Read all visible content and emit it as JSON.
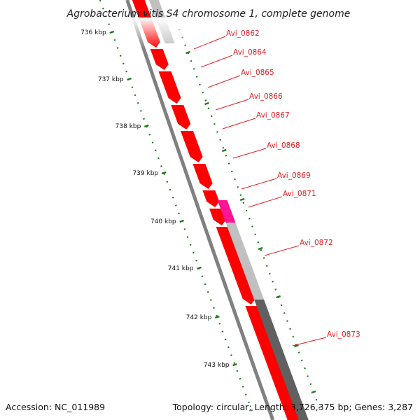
{
  "title": "Agrobacterium vitis S4 chromosome 1, complete genome",
  "footer": {
    "accession": "Accession: NC_011989",
    "summary": "Topology: circular; Length: 3,726,375 bp; Genes: 3,287"
  },
  "colors": {
    "forward_cds": "#ff0000",
    "highlight_cds": "#ff1493",
    "backbone": "#808080",
    "gene_label": "#e02020",
    "tick": "#1e7a1e",
    "light_feature": "#c0c0c0",
    "dark_feature": "#606060"
  },
  "scale_ticks": [
    {
      "label": "736 kbp"
    },
    {
      "label": "737 kbp"
    },
    {
      "label": "738 kbp"
    },
    {
      "label": "739 kbp"
    },
    {
      "label": "740 kbp"
    },
    {
      "label": "741 kbp"
    },
    {
      "label": "742 kbp"
    },
    {
      "label": "743 kbp"
    }
  ],
  "genes": [
    {
      "label": "Avi_0862"
    },
    {
      "label": "Avi_0864"
    },
    {
      "label": "Avi_0865"
    },
    {
      "label": "Avi_0866"
    },
    {
      "label": "Avi_0867"
    },
    {
      "label": "Avi_0868"
    },
    {
      "label": "Avi_0869"
    },
    {
      "label": "Avi_0871"
    },
    {
      "label": "Avi_0872"
    },
    {
      "label": "Avi_0873"
    }
  ]
}
